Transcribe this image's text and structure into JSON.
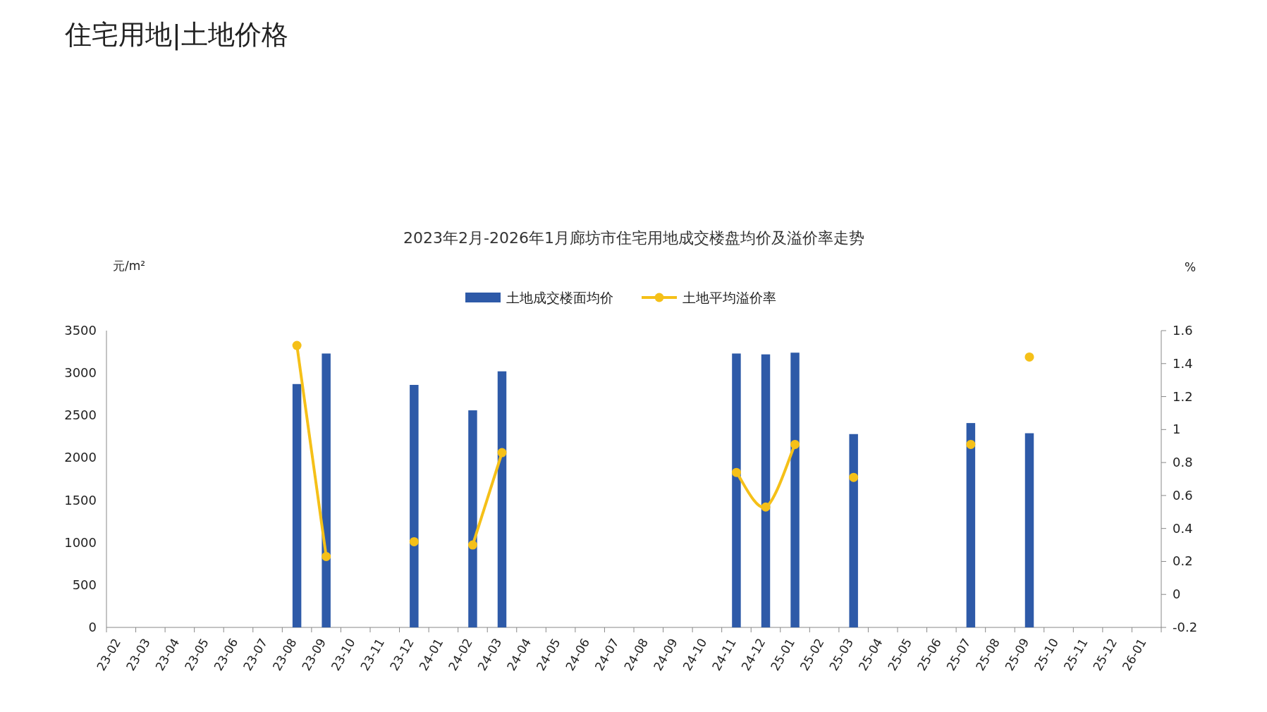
{
  "chart_data": {
    "type": "bar",
    "title": "住宅用地|土地价格",
    "subtitle": "2023年2月-2026年1月廊坊市住宅用地成交楼盘均价及溢价率走势",
    "ylabel": "元/m²",
    "y2label": "%",
    "categories": [
      "23-02",
      "23-03",
      "23-04",
      "23-05",
      "23-06",
      "23-07",
      "23-08",
      "23-09",
      "23-10",
      "23-11",
      "23-12",
      "24-01",
      "24-02",
      "24-03",
      "24-04",
      "24-05",
      "24-06",
      "24-07",
      "24-08",
      "24-09",
      "24-10",
      "24-11",
      "24-12",
      "25-01",
      "25-02",
      "25-03",
      "25-04",
      "25-05",
      "25-06",
      "25-07",
      "25-08",
      "25-09",
      "25-10",
      "25-11",
      "25-12",
      "26-01"
    ],
    "series": [
      {
        "name": "土地成交楼面均价",
        "color": "#2e5aa8",
        "values": [
          null,
          null,
          null,
          null,
          null,
          null,
          2870,
          3230,
          null,
          null,
          2860,
          null,
          2560,
          3020,
          null,
          null,
          null,
          null,
          null,
          null,
          null,
          3230,
          3220,
          3240,
          null,
          2280,
          null,
          null,
          null,
          2410,
          null,
          2290,
          null,
          null,
          null,
          null
        ]
      },
      {
        "name": "土地平均溢价率",
        "type": "line",
        "axis": "y2",
        "color": "#f5c018",
        "marker": "circle",
        "values": [
          null,
          null,
          null,
          null,
          null,
          null,
          1.51,
          0.23,
          null,
          null,
          0.32,
          null,
          0.3,
          0.86,
          null,
          null,
          null,
          null,
          null,
          null,
          null,
          0.74,
          0.53,
          0.91,
          null,
          0.71,
          null,
          null,
          null,
          0.91,
          null,
          1.44,
          null,
          null,
          null,
          null
        ]
      }
    ],
    "ylim": [
      0,
      3500
    ],
    "yticks": [
      0,
      500,
      1000,
      1500,
      2000,
      2500,
      3000,
      3500
    ],
    "y2lim": [
      -0.2,
      1.6
    ],
    "y2ticks": [
      -0.2,
      0,
      0.2,
      0.4,
      0.6,
      0.8,
      1,
      1.2,
      1.4,
      1.6
    ],
    "legend": "top",
    "grid": false
  }
}
